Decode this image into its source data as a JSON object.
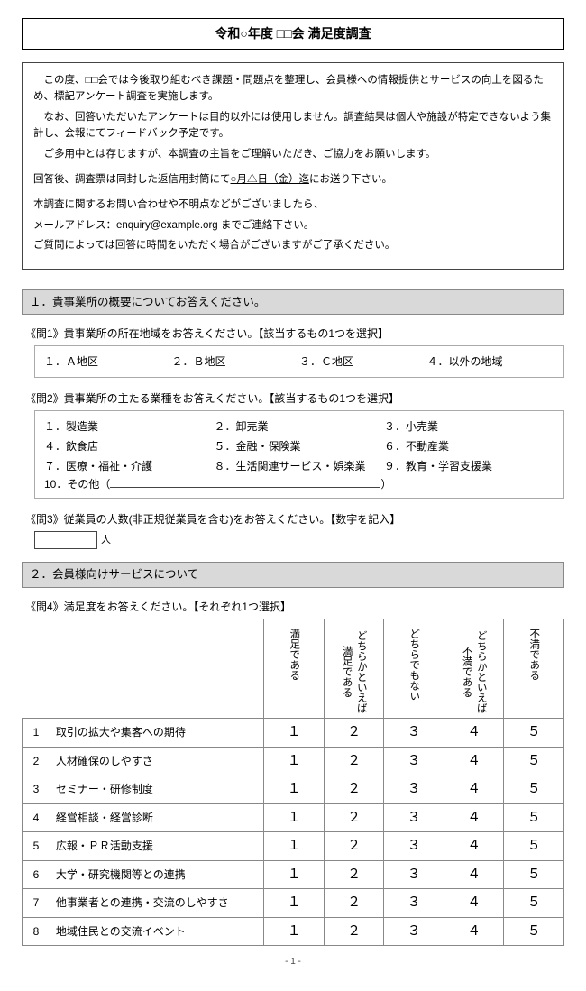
{
  "title": "令和○年度 □□会 満足度調査",
  "intro": {
    "p1": "　この度、□□会では今後取り組むべき課題・問題点を整理し、会員様への情報提供とサービスの向上を図るため、標記アンケート調査を実施します。",
    "p2": "　なお、回答いただいたアンケートは目的以外には使用しません。調査結果は個人や施設が特定できないよう集計し、会報にてフィードバック予定です。",
    "p3": "　ご多用中とは存じますが、本調査の主旨をご理解いただき、ご協力をお願いします。",
    "p4a": "回答後、調査票は同封した返信用封筒にて",
    "p4u": "○月△日（金）迄",
    "p4b": "にお送り下さい。",
    "p5": "本調査に関するお問い合わせや不明点などがございましたら、",
    "p6": "メールアドレス：enquiry@example.org までご連絡下さい。",
    "p7": "ご質問によっては回答に時間をいただく場合がございますがご了承ください。"
  },
  "sec1": "１．貴事業所の概要についてお答えください。",
  "q1": {
    "label": "《問1》貴事業所の所在地域をお答えください。【該当するもの1つを選択】",
    "opts": [
      "１．Ａ地区",
      "２．Ｂ地区",
      "３．Ｃ地区",
      "４．以外の地域"
    ]
  },
  "q2": {
    "label": "《問2》貴事業所の主たる業種をお答えください。【該当するもの1つを選択】",
    "opts": [
      "１．製造業",
      "２．卸売業",
      "３．小売業",
      "４．飲食店",
      "５．金融・保険業",
      "６．不動産業",
      "７．医療・福祉・介護",
      "８．生活関連サービス・娯楽業",
      "９．教育・学習支援業"
    ],
    "other_prefix": "10．その他（",
    "other_suffix": "）"
  },
  "q3": {
    "label": "《問3》従業員の人数(非正規従業員を含む)をお答えください。【数字を記入】",
    "unit": "人"
  },
  "sec2": "２．会員様向けサービスについて",
  "q4": {
    "label": "《問4》満足度をお答えください。【それぞれ1つ選択】",
    "headers": [
      "満足である",
      "どちらかといえば\n満足である",
      "どちらでもない",
      "どちらかといえば\n不満である",
      "不満である"
    ],
    "scale": [
      "１",
      "２",
      "３",
      "４",
      "５"
    ],
    "rows": [
      {
        "n": "1",
        "t": "取引の拡大や集客への期待"
      },
      {
        "n": "2",
        "t": "人材確保のしやすさ"
      },
      {
        "n": "3",
        "t": "セミナー・研修制度"
      },
      {
        "n": "4",
        "t": "経営相談・経営診断"
      },
      {
        "n": "5",
        "t": "広報・ＰＲ活動支援"
      },
      {
        "n": "6",
        "t": "大学・研究機関等との連携"
      },
      {
        "n": "7",
        "t": "他事業者との連携・交流のしやすさ"
      },
      {
        "n": "8",
        "t": "地域住民との交流イベント"
      }
    ]
  },
  "footer": "- 1 -"
}
